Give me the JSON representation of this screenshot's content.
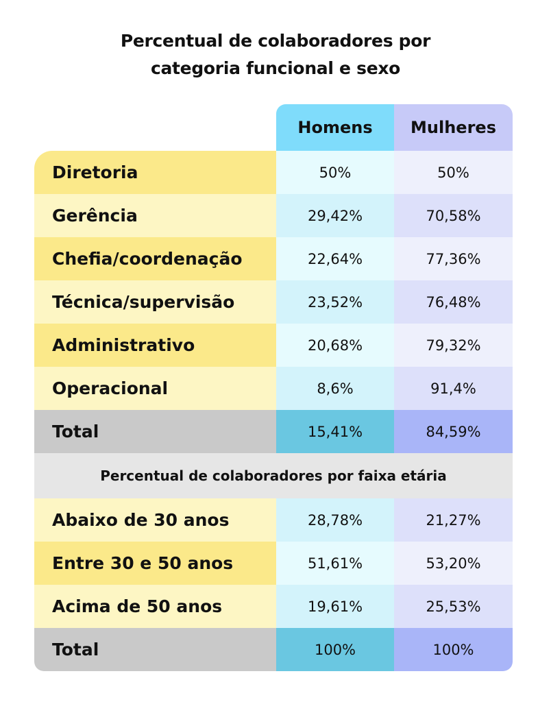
{
  "title": {
    "line1": "Percentual de colaboradores por",
    "line2": "categoria funcional e sexo"
  },
  "headers": {
    "homens": "Homens",
    "mulheres": "Mulheres"
  },
  "categoria": [
    {
      "label": "Diretoria",
      "homens": "50%",
      "mulheres": "50%"
    },
    {
      "label": "Gerência",
      "homens": "29,42%",
      "mulheres": "70,58%"
    },
    {
      "label": "Chefia/coordenação",
      "homens": "22,64%",
      "mulheres": "77,36%"
    },
    {
      "label": "Técnica/supervisão",
      "homens": "23,52%",
      "mulheres": "76,48%"
    },
    {
      "label": "Administrativo",
      "homens": "20,68%",
      "mulheres": "79,32%"
    },
    {
      "label": "Operacional",
      "homens": "8,6%",
      "mulheres": "91,4%"
    }
  ],
  "categoria_total": {
    "label": "Total",
    "homens": "15,41%",
    "mulheres": "84,59%"
  },
  "faixa_title": "Percentual de colaboradores por faixa etária",
  "faixa": [
    {
      "label": "Abaixo de 30 anos",
      "homens": "28,78%",
      "mulheres": "21,27%"
    },
    {
      "label": "Entre 30 e 50 anos",
      "homens": "51,61%",
      "mulheres": "53,20%"
    },
    {
      "label": "Acima de 50 anos",
      "homens": "19,61%",
      "mulheres": "25,53%"
    }
  ],
  "faixa_total": {
    "label": "Total",
    "homens": "100%",
    "mulheres": "100%"
  }
}
